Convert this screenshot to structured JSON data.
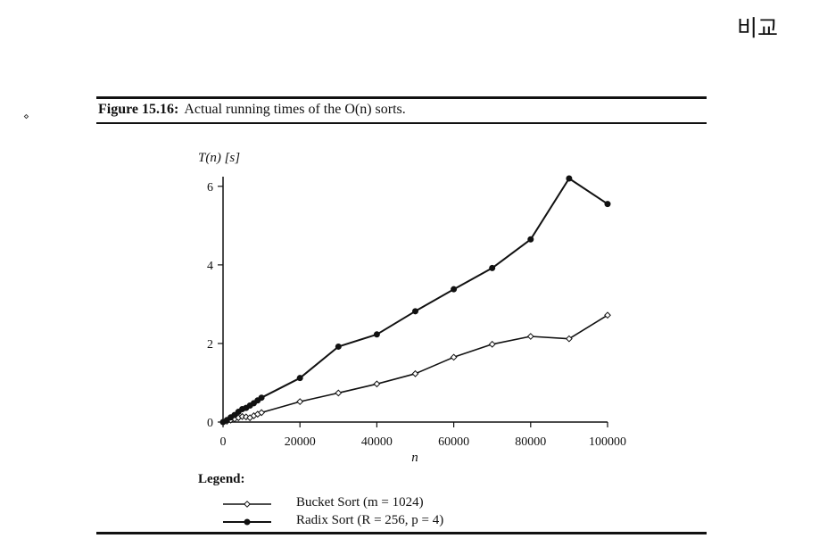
{
  "page": {
    "korean_note": "비교",
    "bullet_glyph": "⋄"
  },
  "figure": {
    "caption_label": "Figure 15.16:",
    "caption_text": "Actual running times of the O(n) sorts."
  },
  "chart_data": {
    "type": "line",
    "ylabel": "T(n) [s]",
    "xlabel": "n",
    "xlim": [
      0,
      100000
    ],
    "ylim": [
      0,
      6.2
    ],
    "x_ticks": [
      0,
      20000,
      40000,
      60000,
      80000,
      100000
    ],
    "x_tick_labels": [
      "0",
      "20000",
      "40000",
      "60000",
      "80000",
      "100000"
    ],
    "y_ticks": [
      0,
      2,
      4,
      6
    ],
    "y_tick_labels": [
      "0",
      "2",
      "4",
      "6"
    ],
    "grid": false,
    "legend_title": "Legend:",
    "series": [
      {
        "name": "Bucket Sort (m = 1024)",
        "marker": "open-diamond",
        "color": "#111111",
        "points": [
          [
            0,
            0.0
          ],
          [
            1000,
            0.02
          ],
          [
            2000,
            0.05
          ],
          [
            3000,
            0.08
          ],
          [
            4000,
            0.11
          ],
          [
            5000,
            0.14
          ],
          [
            6000,
            0.13
          ],
          [
            7000,
            0.11
          ],
          [
            8000,
            0.16
          ],
          [
            9000,
            0.2
          ],
          [
            10000,
            0.24
          ],
          [
            20000,
            0.52
          ],
          [
            30000,
            0.74
          ],
          [
            40000,
            0.97
          ],
          [
            50000,
            1.23
          ],
          [
            60000,
            1.65
          ],
          [
            70000,
            1.98
          ],
          [
            80000,
            2.18
          ],
          [
            90000,
            2.12
          ],
          [
            100000,
            2.72
          ]
        ]
      },
      {
        "name": "Radix Sort (R = 256, p = 4)",
        "marker": "filled-circle",
        "color": "#111111",
        "points": [
          [
            0,
            0.0
          ],
          [
            1000,
            0.05
          ],
          [
            2000,
            0.12
          ],
          [
            3000,
            0.18
          ],
          [
            4000,
            0.26
          ],
          [
            5000,
            0.33
          ],
          [
            6000,
            0.36
          ],
          [
            7000,
            0.42
          ],
          [
            8000,
            0.48
          ],
          [
            9000,
            0.55
          ],
          [
            10000,
            0.62
          ],
          [
            20000,
            1.12
          ],
          [
            30000,
            1.92
          ],
          [
            40000,
            2.23
          ],
          [
            50000,
            2.82
          ],
          [
            60000,
            3.38
          ],
          [
            70000,
            3.92
          ],
          [
            80000,
            4.65
          ],
          [
            90000,
            6.2
          ],
          [
            100000,
            5.55
          ]
        ]
      }
    ]
  }
}
